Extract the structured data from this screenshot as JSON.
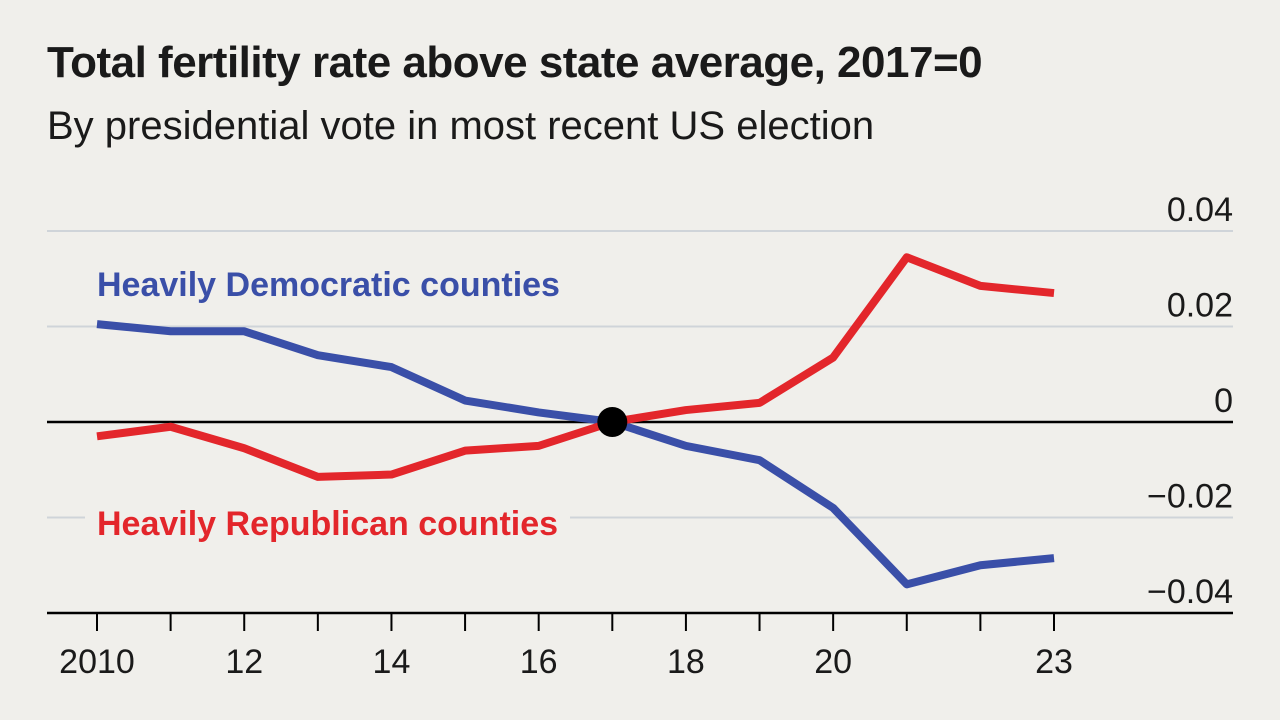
{
  "chart_data": {
    "type": "line",
    "title": "Total fertility rate above state average, 2017=0",
    "subtitle": "By presidential vote in most recent US election",
    "x": [
      2010,
      2011,
      2012,
      2013,
      2014,
      2015,
      2016,
      2017,
      2018,
      2019,
      2020,
      2021,
      2022,
      2023
    ],
    "xticks": [
      2010,
      2012,
      2014,
      2016,
      2018,
      2020,
      2023
    ],
    "xtick_labels": [
      "2010",
      "12",
      "14",
      "16",
      "18",
      "20",
      "23"
    ],
    "ylim": [
      -0.04,
      0.04
    ],
    "yticks": [
      0.04,
      0.02,
      0,
      -0.02,
      -0.04
    ],
    "ytick_labels": [
      "0.04",
      "0.02",
      "0",
      "−0.02",
      "−0.04"
    ],
    "series": [
      {
        "name": "Heavily Democratic counties",
        "color": "#3a4fa8",
        "values": [
          0.0205,
          0.019,
          0.019,
          0.014,
          0.0115,
          0.0045,
          0.002,
          0.0,
          -0.005,
          -0.008,
          -0.018,
          -0.034,
          -0.03,
          -0.0285
        ]
      },
      {
        "name": "Heavily Republican counties",
        "color": "#e3262b",
        "values": [
          -0.003,
          -0.001,
          -0.0055,
          -0.0115,
          -0.011,
          -0.006,
          -0.005,
          0.0,
          0.0025,
          0.004,
          0.0135,
          0.0345,
          0.0285,
          0.027
        ]
      }
    ],
    "marker": {
      "x": 2017,
      "y": 0,
      "color": "#000000"
    },
    "grid": true,
    "zero_line_color": "#000000",
    "grid_color": "#cfd4d9"
  }
}
